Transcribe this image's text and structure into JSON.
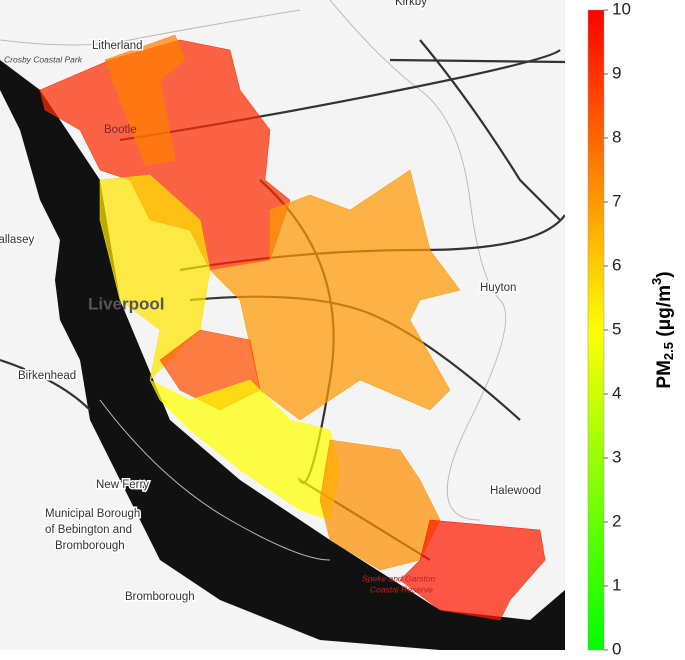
{
  "map": {
    "places": [
      "Kirkby",
      "Litherland",
      "Crosby Coastal Park",
      "Bootle",
      "Wallasey",
      "Liverpool",
      "Huyton",
      "Birkenhead",
      "New Ferry",
      "Municipal Borough",
      "of Bebington and",
      "Bromborough",
      "Halewood",
      "Bromborough",
      "Speke and Garston",
      "Coastal Reserve"
    ],
    "zones": [
      {
        "value": 9.2
      },
      {
        "value": 7.5
      },
      {
        "value": 5.5
      },
      {
        "value": 7.0
      },
      {
        "value": 8.5
      },
      {
        "value": 5.0
      },
      {
        "value": 7.2
      },
      {
        "value": 9.5
      }
    ],
    "colorbar": {
      "label": {
        "base": "PM",
        "subscript": "2.5",
        "unit": " (μg/m",
        "superscript": "3",
        "close": ")"
      },
      "lim": [
        0,
        10
      ],
      "ticks": [
        0,
        1,
        2,
        3,
        4,
        5,
        6,
        7,
        8,
        9,
        10
      ],
      "colors": [
        "#00ff00",
        "#ffff00",
        "#ff0000"
      ],
      "opacity": 0.72
    }
  }
}
